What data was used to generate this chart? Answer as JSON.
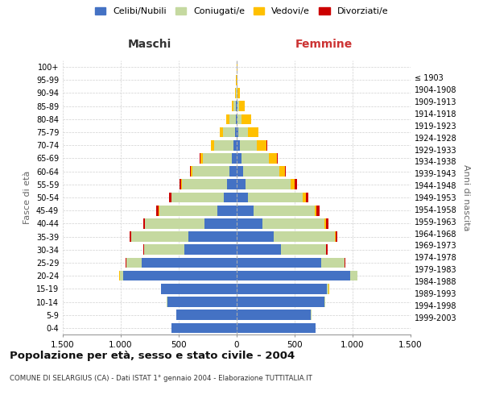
{
  "age_groups": [
    "100+",
    "95-99",
    "90-94",
    "85-89",
    "80-84",
    "75-79",
    "70-74",
    "65-69",
    "60-64",
    "55-59",
    "50-54",
    "45-49",
    "40-44",
    "35-39",
    "30-34",
    "25-29",
    "20-24",
    "15-19",
    "10-14",
    "5-9",
    "0-4"
  ],
  "birth_years": [
    "≤ 1903",
    "1904-1908",
    "1909-1913",
    "1914-1918",
    "1919-1923",
    "1924-1928",
    "1929-1933",
    "1934-1938",
    "1939-1943",
    "1944-1948",
    "1949-1953",
    "1954-1958",
    "1959-1963",
    "1964-1968",
    "1969-1973",
    "1974-1978",
    "1979-1983",
    "1984-1988",
    "1989-1993",
    "1994-1998",
    "1999-2003"
  ],
  "colors": {
    "celibi": "#4472c4",
    "coniugati": "#c5d9a0",
    "vedovi": "#ffc000",
    "divorziati": "#cc0000"
  },
  "maschi": {
    "celibi": [
      2,
      2,
      3,
      5,
      8,
      15,
      25,
      45,
      60,
      80,
      110,
      170,
      280,
      420,
      450,
      820,
      980,
      650,
      600,
      520,
      560
    ],
    "coniugati": [
      0,
      0,
      5,
      20,
      55,
      100,
      170,
      250,
      320,
      390,
      450,
      500,
      510,
      490,
      350,
      130,
      30,
      5,
      2,
      2,
      2
    ],
    "vedovi": [
      0,
      2,
      5,
      20,
      30,
      30,
      25,
      20,
      15,
      10,
      5,
      4,
      3,
      2,
      1,
      2,
      1,
      0,
      0,
      0,
      0
    ],
    "divorziati": [
      0,
      0,
      0,
      0,
      0,
      2,
      3,
      5,
      8,
      14,
      18,
      18,
      16,
      12,
      8,
      4,
      2,
      0,
      0,
      0,
      0
    ]
  },
  "femmine": {
    "celibi": [
      2,
      2,
      3,
      5,
      10,
      15,
      25,
      45,
      55,
      75,
      100,
      145,
      220,
      320,
      380,
      730,
      980,
      780,
      760,
      640,
      680
    ],
    "coniugati": [
      0,
      0,
      5,
      15,
      35,
      80,
      150,
      230,
      310,
      390,
      470,
      530,
      540,
      530,
      390,
      200,
      60,
      15,
      5,
      3,
      2
    ],
    "vedovi": [
      2,
      5,
      20,
      50,
      80,
      90,
      85,
      70,
      50,
      35,
      25,
      15,
      10,
      5,
      3,
      3,
      2,
      1,
      0,
      0,
      0
    ],
    "divorziati": [
      0,
      0,
      0,
      0,
      0,
      2,
      4,
      6,
      10,
      18,
      25,
      28,
      22,
      16,
      10,
      5,
      2,
      0,
      0,
      0,
      0
    ]
  },
  "title": "Popolazione per età, sesso e stato civile - 2004",
  "subtitle": "COMUNE DI SELARGIUS (CA) - Dati ISTAT 1° gennaio 2004 - Elaborazione TUTTITALIA.IT",
  "xlabel_left": "Maschi",
  "xlabel_right": "Femmine",
  "ylabel_left": "Fasce di età",
  "ylabel_right": "Anni di nascita",
  "xlim": 1500,
  "legend_labels": [
    "Celibi/Nubili",
    "Coniugati/e",
    "Vedovi/e",
    "Divorziati/e"
  ],
  "bg_color": "#ffffff",
  "grid_color": "#cccccc"
}
